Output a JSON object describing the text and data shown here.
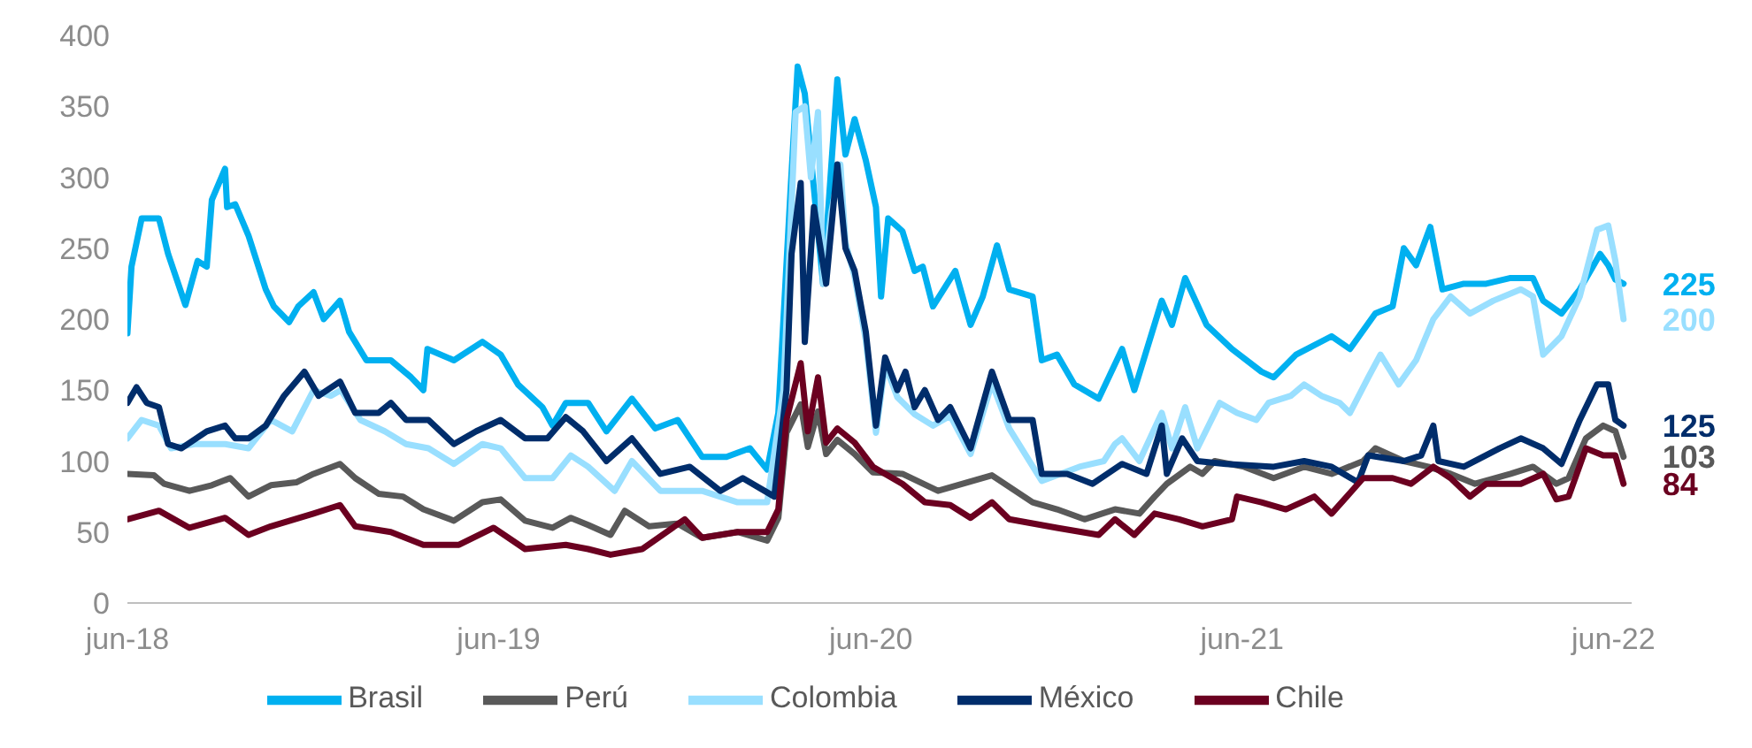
{
  "chart_data": {
    "type": "line",
    "xlim": [
      "2018-06-01",
      "2022-06-19"
    ],
    "xticks": [
      {
        "value": "2018-06-01",
        "label": "jun-18"
      },
      {
        "value": "2019-06-01",
        "label": "jun-19"
      },
      {
        "value": "2020-06-01",
        "label": "jun-20"
      },
      {
        "value": "2021-06-01",
        "label": "jun-21"
      },
      {
        "value": "2022-06-01",
        "label": "jun-22"
      }
    ],
    "ylim": [
      0,
      400
    ],
    "yticks": [
      0,
      50,
      100,
      150,
      200,
      250,
      300,
      350,
      400
    ],
    "legend": "bottom",
    "marker": "none",
    "line_style": "solid",
    "series": [
      {
        "name": "Brasil",
        "color": "#00b0f0",
        "x": [
          "2018-06-01",
          "2018-06-05",
          "2018-06-15",
          "2018-07-02",
          "2018-07-11",
          "2018-07-28",
          "2018-08-09",
          "2018-08-18",
          "2018-08-23",
          "2018-09-05",
          "2018-09-07",
          "2018-09-15",
          "2018-09-28",
          "2018-10-15",
          "2018-10-23",
          "2018-11-07",
          "2018-11-16",
          "2018-12-01",
          "2018-12-11",
          "2018-12-27",
          "2019-01-05",
          "2019-01-22",
          "2019-02-15",
          "2019-03-07",
          "2019-03-19",
          "2019-03-23",
          "2019-04-18",
          "2019-05-16",
          "2019-06-03",
          "2019-06-20",
          "2019-07-14",
          "2019-07-24",
          "2019-08-06",
          "2019-08-28",
          "2019-09-15",
          "2019-10-10",
          "2019-11-02",
          "2019-11-24",
          "2019-12-18",
          "2020-01-11",
          "2020-02-03",
          "2020-02-20",
          "2020-03-02",
          "2020-03-14",
          "2020-03-21",
          "2020-03-28",
          "2020-04-10",
          "2020-04-15",
          "2020-04-29",
          "2020-05-07",
          "2020-05-16",
          "2020-05-27",
          "2020-06-06",
          "2020-06-11",
          "2020-06-18",
          "2020-07-02",
          "2020-07-14",
          "2020-07-22",
          "2020-08-01",
          "2020-08-23",
          "2020-09-07",
          "2020-09-19",
          "2020-10-03",
          "2020-10-15",
          "2020-11-07",
          "2020-11-16",
          "2020-12-01",
          "2020-12-18",
          "2021-01-11",
          "2021-02-03",
          "2021-02-15",
          "2021-03-14",
          "2021-03-24",
          "2021-04-06",
          "2021-04-27",
          "2021-05-22",
          "2021-06-20",
          "2021-07-02",
          "2021-07-24",
          "2021-08-28",
          "2021-09-15",
          "2021-10-10",
          "2021-10-27",
          "2021-11-07",
          "2021-11-19",
          "2021-12-03",
          "2021-12-15",
          "2022-01-05",
          "2022-01-27",
          "2022-02-20",
          "2022-03-14",
          "2022-03-24",
          "2022-04-11",
          "2022-04-29",
          "2022-05-19",
          "2022-05-27",
          "2022-06-03",
          "2022-06-11"
        ],
        "values": [
          190,
          237,
          271,
          271,
          246,
          210,
          241,
          237,
          284,
          306,
          279,
          281,
          259,
          221,
          209,
          198,
          209,
          219,
          200,
          213,
          191,
          171,
          171,
          159,
          150,
          179,
          171,
          184,
          175,
          154,
          138,
          125,
          141,
          141,
          121,
          144,
          123,
          129,
          103,
          103,
          109,
          94,
          134,
          291,
          378,
          359,
          262,
          225,
          369,
          316,
          341,
          312,
          279,
          216,
          271,
          262,
          234,
          237,
          209,
          234,
          196,
          216,
          252,
          221,
          216,
          171,
          175,
          154,
          144,
          179,
          150,
          213,
          196,
          229,
          196,
          179,
          163,
          159,
          175,
          188,
          179,
          204,
          209,
          250,
          238,
          265,
          221,
          225,
          225,
          229,
          229,
          213,
          204,
          221,
          246,
          238,
          228,
          225
        ]
      },
      {
        "name": "Perú",
        "color": "#595959",
        "x": [
          "2018-06-01",
          "2018-06-27",
          "2018-07-07",
          "2018-08-01",
          "2018-08-23",
          "2018-09-10",
          "2018-09-28",
          "2018-10-20",
          "2018-11-14",
          "2018-12-01",
          "2018-12-27",
          "2019-01-11",
          "2019-02-03",
          "2019-02-27",
          "2019-03-19",
          "2019-04-18",
          "2019-05-16",
          "2019-06-03",
          "2019-06-27",
          "2019-07-24",
          "2019-08-11",
          "2019-08-28",
          "2019-09-19",
          "2019-10-03",
          "2019-10-27",
          "2019-11-24",
          "2019-12-18",
          "2020-01-22",
          "2020-02-20",
          "2020-03-02",
          "2020-03-10",
          "2020-03-24",
          "2020-03-31",
          "2020-04-10",
          "2020-04-18",
          "2020-04-29",
          "2020-05-16",
          "2020-06-03",
          "2020-07-02",
          "2020-08-06",
          "2020-09-28",
          "2020-11-07",
          "2020-12-01",
          "2020-12-28",
          "2021-01-27",
          "2021-02-20",
          "2021-03-07",
          "2021-03-19",
          "2021-04-11",
          "2021-04-23",
          "2021-05-05",
          "2021-06-03",
          "2021-07-02",
          "2021-08-01",
          "2021-08-28",
          "2021-09-28",
          "2021-10-10",
          "2021-11-07",
          "2021-12-01",
          "2021-12-23",
          "2022-01-16",
          "2022-02-20",
          "2022-03-14",
          "2022-04-06",
          "2022-04-18",
          "2022-05-05",
          "2022-05-22",
          "2022-06-03",
          "2022-06-11"
        ],
        "values": [
          91,
          90,
          84,
          79,
          83,
          88,
          75,
          83,
          85,
          91,
          98,
          88,
          77,
          75,
          66,
          58,
          71,
          73,
          58,
          53,
          60,
          55,
          48,
          65,
          54,
          56,
          46,
          50,
          44,
          60,
          120,
          140,
          110,
          135,
          105,
          115,
          105,
          92,
          91,
          79,
          90,
          71,
          66,
          59,
          66,
          63,
          75,
          84,
          96,
          91,
          100,
          96,
          88,
          96,
          91,
          100,
          109,
          100,
          96,
          91,
          84,
          91,
          96,
          84,
          88,
          116,
          125,
          121,
          103
        ]
      },
      {
        "name": "Colombia",
        "color": "#99dfff",
        "x": [
          "2018-06-01",
          "2018-06-15",
          "2018-07-02",
          "2018-07-14",
          "2018-08-06",
          "2018-09-05",
          "2018-09-28",
          "2018-10-20",
          "2018-11-10",
          "2018-12-01",
          "2018-12-18",
          "2018-12-28",
          "2019-01-16",
          "2019-02-09",
          "2019-03-02",
          "2019-03-24",
          "2019-04-18",
          "2019-05-16",
          "2019-06-03",
          "2019-06-27",
          "2019-07-24",
          "2019-08-11",
          "2019-08-28",
          "2019-09-23",
          "2019-10-10",
          "2019-11-07",
          "2019-12-18",
          "2020-01-22",
          "2020-02-20",
          "2020-03-07",
          "2020-03-19",
          "2020-03-28",
          "2020-04-03",
          "2020-04-10",
          "2020-04-15",
          "2020-04-23",
          "2020-05-02",
          "2020-05-07",
          "2020-05-16",
          "2020-05-27",
          "2020-06-06",
          "2020-06-15",
          "2020-06-27",
          "2020-07-14",
          "2020-08-01",
          "2020-08-18",
          "2020-09-07",
          "2020-09-28",
          "2020-10-15",
          "2020-11-16",
          "2020-12-23",
          "2021-01-16",
          "2021-01-27",
          "2021-02-03",
          "2021-02-20",
          "2021-03-14",
          "2021-03-24",
          "2021-04-06",
          "2021-04-18",
          "2021-05-10",
          "2021-05-27",
          "2021-06-15",
          "2021-06-27",
          "2021-07-19",
          "2021-08-01",
          "2021-08-18",
          "2021-09-05",
          "2021-09-15",
          "2021-10-03",
          "2021-10-15",
          "2021-11-02",
          "2021-11-19",
          "2021-12-06",
          "2021-12-23",
          "2022-01-11",
          "2022-02-03",
          "2022-03-02",
          "2022-03-14",
          "2022-03-24",
          "2022-04-11",
          "2022-04-29",
          "2022-05-16",
          "2022-05-27",
          "2022-06-03",
          "2022-06-11"
        ],
        "values": [
          116,
          129,
          125,
          109,
          112,
          112,
          109,
          129,
          121,
          150,
          146,
          150,
          129,
          121,
          112,
          109,
          98,
          112,
          109,
          88,
          88,
          104,
          96,
          79,
          100,
          79,
          79,
          71,
          71,
          150,
          346,
          350,
          300,
          346,
          225,
          275,
          309,
          254,
          230,
          185,
          120,
          168,
          145,
          133,
          125,
          132,
          105,
          155,
          123,
          86,
          96,
          100,
          112,
          116,
          100,
          134,
          109,
          138,
          109,
          141,
          134,
          129,
          141,
          146,
          154,
          146,
          141,
          134,
          159,
          175,
          154,
          171,
          200,
          216,
          204,
          213,
          221,
          216,
          175,
          188,
          216,
          263,
          266,
          241,
          200
        ]
      },
      {
        "name": "México",
        "color": "#002d6b",
        "x": [
          "2018-06-01",
          "2018-06-10",
          "2018-06-20",
          "2018-07-02",
          "2018-07-11",
          "2018-07-24",
          "2018-08-18",
          "2018-09-05",
          "2018-09-15",
          "2018-09-28",
          "2018-10-15",
          "2018-11-02",
          "2018-11-22",
          "2018-12-06",
          "2018-12-27",
          "2019-01-11",
          "2019-02-03",
          "2019-02-15",
          "2019-03-02",
          "2019-03-24",
          "2019-04-18",
          "2019-05-10",
          "2019-06-03",
          "2019-06-27",
          "2019-07-19",
          "2019-08-06",
          "2019-08-23",
          "2019-09-15",
          "2019-10-10",
          "2019-11-07",
          "2019-12-06",
          "2020-01-05",
          "2020-01-27",
          "2020-02-27",
          "2020-03-10",
          "2020-03-15",
          "2020-03-24",
          "2020-03-28",
          "2020-04-06",
          "2020-04-18",
          "2020-04-29",
          "2020-05-07",
          "2020-05-16",
          "2020-05-27",
          "2020-06-06",
          "2020-06-15",
          "2020-06-27",
          "2020-07-05",
          "2020-07-14",
          "2020-07-24",
          "2020-08-06",
          "2020-08-18",
          "2020-09-07",
          "2020-09-28",
          "2020-10-15",
          "2020-11-07",
          "2020-11-16",
          "2020-12-11",
          "2021-01-05",
          "2021-02-03",
          "2021-02-27",
          "2021-03-14",
          "2021-03-19",
          "2021-04-03",
          "2021-04-18",
          "2021-05-16",
          "2021-07-02",
          "2021-08-01",
          "2021-08-28",
          "2021-09-23",
          "2021-10-03",
          "2021-11-07",
          "2021-11-24",
          "2021-12-06",
          "2021-12-11",
          "2022-01-05",
          "2022-02-09",
          "2022-03-02",
          "2022-03-24",
          "2022-04-11",
          "2022-04-29",
          "2022-05-16",
          "2022-05-27",
          "2022-06-03",
          "2022-06-11"
        ],
        "values": [
          141,
          152,
          141,
          138,
          112,
          109,
          121,
          125,
          116,
          116,
          125,
          146,
          163,
          146,
          156,
          134,
          134,
          141,
          129,
          129,
          112,
          121,
          129,
          116,
          116,
          131,
          121,
          100,
          116,
          91,
          96,
          79,
          88,
          75,
          150,
          246,
          296,
          184,
          279,
          225,
          309,
          250,
          234,
          191,
          125,
          173,
          150,
          163,
          138,
          150,
          129,
          138,
          109,
          163,
          129,
          129,
          91,
          91,
          84,
          98,
          91,
          125,
          91,
          116,
          100,
          98,
          96,
          100,
          96,
          85,
          104,
          100,
          104,
          125,
          100,
          96,
          109,
          116,
          109,
          98,
          129,
          154,
          154,
          129,
          125
        ]
      },
      {
        "name": "Chile",
        "color": "#6b0020",
        "x": [
          "2018-06-01",
          "2018-07-02",
          "2018-08-01",
          "2018-09-05",
          "2018-09-28",
          "2018-10-20",
          "2018-12-01",
          "2018-12-27",
          "2019-01-11",
          "2019-02-15",
          "2019-03-19",
          "2019-04-23",
          "2019-05-27",
          "2019-06-27",
          "2019-08-06",
          "2019-08-28",
          "2019-09-19",
          "2019-10-20",
          "2019-12-01",
          "2019-12-18",
          "2020-01-22",
          "2020-02-20",
          "2020-03-02",
          "2020-03-10",
          "2020-03-24",
          "2020-03-31",
          "2020-04-10",
          "2020-04-18",
          "2020-04-29",
          "2020-05-16",
          "2020-06-03",
          "2020-06-15",
          "2020-07-02",
          "2020-07-24",
          "2020-08-18",
          "2020-09-07",
          "2020-09-28",
          "2020-10-15",
          "2020-12-01",
          "2021-01-11",
          "2021-01-27",
          "2021-02-15",
          "2021-03-07",
          "2021-03-31",
          "2021-04-23",
          "2021-05-22",
          "2021-05-27",
          "2021-06-20",
          "2021-07-14",
          "2021-08-11",
          "2021-08-28",
          "2021-09-28",
          "2021-10-27",
          "2021-11-14",
          "2021-12-06",
          "2021-12-23",
          "2022-01-11",
          "2022-01-27",
          "2022-03-02",
          "2022-03-24",
          "2022-04-06",
          "2022-04-18",
          "2022-05-05",
          "2022-05-22",
          "2022-06-03",
          "2022-06-11"
        ],
        "values": [
          59,
          65,
          53,
          60,
          48,
          54,
          63,
          69,
          54,
          50,
          41,
          41,
          53,
          38,
          41,
          38,
          34,
          38,
          59,
          46,
          50,
          50,
          66,
          129,
          169,
          121,
          159,
          113,
          123,
          113,
          96,
          91,
          84,
          71,
          69,
          60,
          71,
          59,
          53,
          48,
          59,
          48,
          63,
          59,
          54,
          59,
          75,
          71,
          66,
          75,
          63,
          88,
          88,
          84,
          96,
          88,
          75,
          84,
          84,
          91,
          73,
          75,
          109,
          104,
          104,
          84
        ]
      }
    ],
    "annotations": [
      {
        "text": "225",
        "x": "2022-06-11",
        "y": 225
      },
      {
        "text": "200",
        "x": "2022-06-11",
        "y": 200
      },
      {
        "text": "125",
        "x": "2022-06-11",
        "y": 125
      },
      {
        "text": "103",
        "x": "2022-06-11",
        "y": 103
      },
      {
        "text": "84",
        "x": "2022-06-11",
        "y": 84
      }
    ]
  }
}
